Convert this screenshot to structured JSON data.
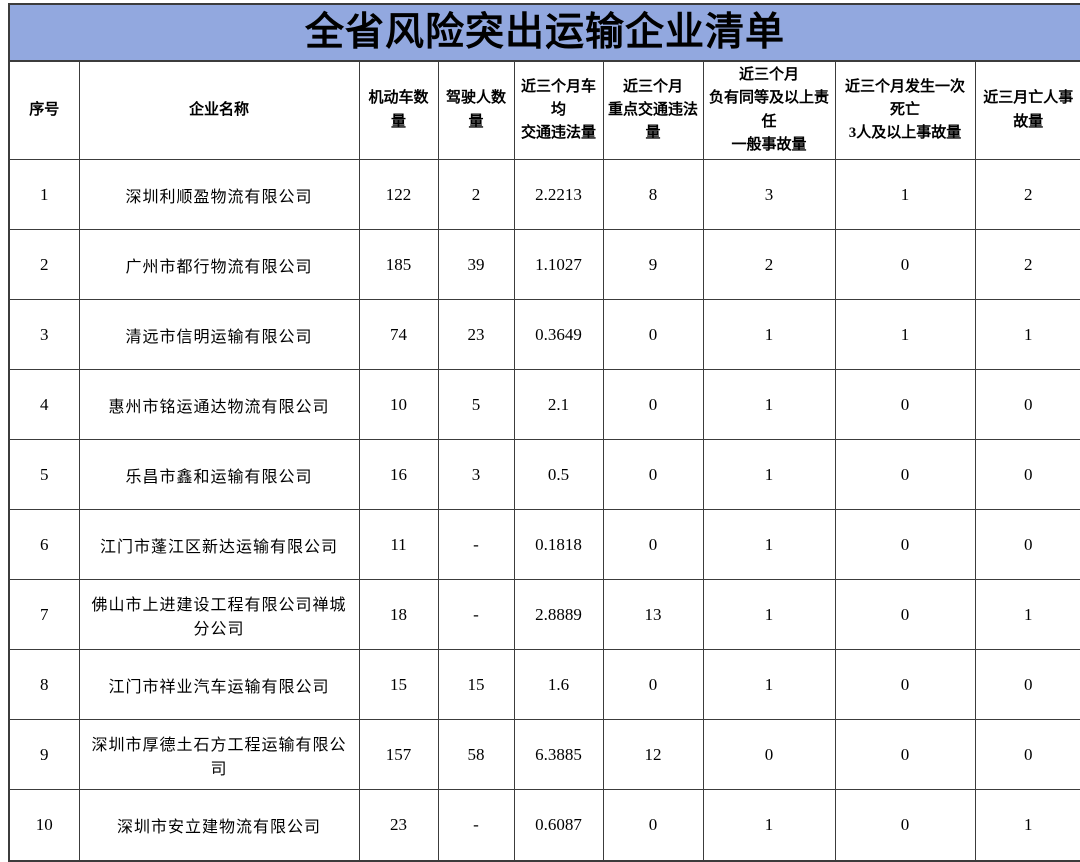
{
  "title": "全省风险突出运输企业清单",
  "theme": {
    "title_bg": "#92A8DF",
    "border_color": "#3C3C3C",
    "text_color": "#000000"
  },
  "table": {
    "columns": [
      {
        "label": "序号"
      },
      {
        "label": "企业名称"
      },
      {
        "label": "机动车数量"
      },
      {
        "label": "驾驶人数量"
      },
      {
        "label": "近三个月车均\n交通违法量"
      },
      {
        "label": "近三个月\n重点交通违法量"
      },
      {
        "label": "近三个月\n负有同等及以上责任\n一般事故量"
      },
      {
        "label": "近三个月发生一次死亡\n3人及以上事故量"
      },
      {
        "label": "近三月亡人事故量"
      }
    ],
    "rows": [
      {
        "cells": [
          "1",
          "深圳利顺盈物流有限公司",
          "122",
          "2",
          "2.2213",
          "8",
          "3",
          "1",
          "2"
        ]
      },
      {
        "cells": [
          "2",
          "广州市都行物流有限公司",
          "185",
          "39",
          "1.1027",
          "9",
          "2",
          "0",
          "2"
        ]
      },
      {
        "cells": [
          "3",
          "清远市信明运输有限公司",
          "74",
          "23",
          "0.3649",
          "0",
          "1",
          "1",
          "1"
        ]
      },
      {
        "cells": [
          "4",
          "惠州市铭运通达物流有限公司",
          "10",
          "5",
          "2.1",
          "0",
          "1",
          "0",
          "0"
        ]
      },
      {
        "cells": [
          "5",
          "乐昌市鑫和运输有限公司",
          "16",
          "3",
          "0.5",
          "0",
          "1",
          "0",
          "0"
        ]
      },
      {
        "cells": [
          "6",
          "江门市蓬江区新达运输有限公司",
          "11",
          "-",
          "0.1818",
          "0",
          "1",
          "0",
          "0"
        ]
      },
      {
        "cells": [
          "7",
          "佛山市上进建设工程有限公司禅城分公司",
          "18",
          "-",
          "2.8889",
          "13",
          "1",
          "0",
          "1"
        ]
      },
      {
        "cells": [
          "8",
          "江门市祥业汽车运输有限公司",
          "15",
          "15",
          "1.6",
          "0",
          "1",
          "0",
          "0"
        ]
      },
      {
        "cells": [
          "9",
          "深圳市厚德土石方工程运输有限公司",
          "157",
          "58",
          "6.3885",
          "12",
          "0",
          "0",
          "0"
        ]
      },
      {
        "cells": [
          "10",
          "深圳市安立建物流有限公司",
          "23",
          "-",
          "0.6087",
          "0",
          "1",
          "0",
          "1"
        ]
      }
    ]
  }
}
